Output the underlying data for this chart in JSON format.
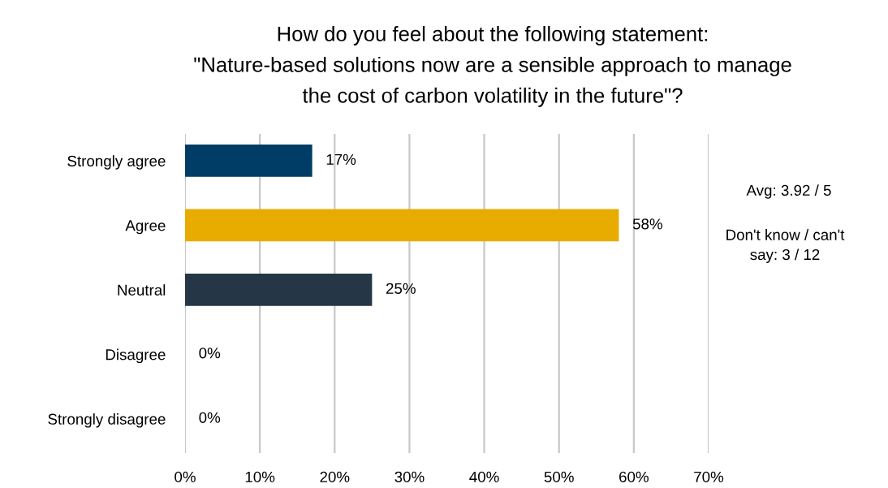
{
  "chart_data": {
    "type": "bar",
    "orientation": "horizontal",
    "title": "How do you feel about the following statement:\n\"Nature-based solutions now are a sensible approach to manage the cost of carbon volatility in the future\"?",
    "categories": [
      "Strongly agree",
      "Agree",
      "Neutral",
      "Disagree",
      "Strongly disagree"
    ],
    "values": [
      17,
      58,
      25,
      0,
      0
    ],
    "colors": [
      "#003d66",
      "#e8ab00",
      "#253746",
      "#253746",
      "#253746"
    ],
    "value_labels": [
      "17%",
      "58%",
      "25%",
      "0%",
      "0%"
    ],
    "xlim": [
      0,
      70
    ],
    "xticks": [
      {
        "value": 0,
        "label": "0%"
      },
      {
        "value": 10,
        "label": "10%"
      },
      {
        "value": 20,
        "label": "20%"
      },
      {
        "value": 30,
        "label": "30%"
      },
      {
        "value": 40,
        "label": "40%"
      },
      {
        "value": 50,
        "label": "50%"
      },
      {
        "value": 60,
        "label": "60%"
      },
      {
        "value": 70,
        "label": "70%"
      }
    ],
    "grid": "x",
    "annotations": [
      "Avg: 3.92 / 5",
      "Don't know / can't say: 3 / 12"
    ]
  }
}
